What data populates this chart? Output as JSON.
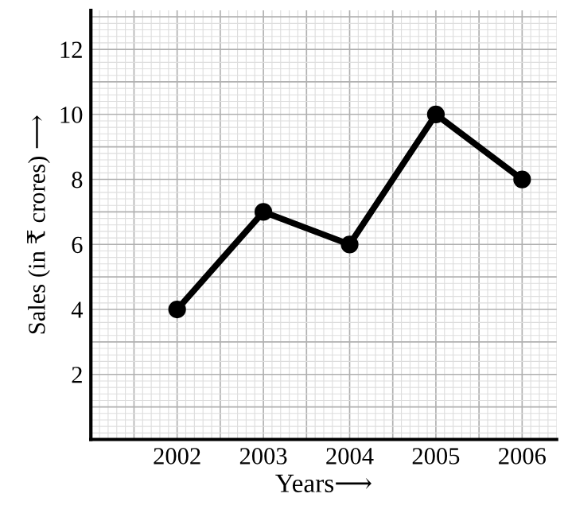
{
  "chart_data": {
    "type": "line",
    "xlabel": "Years⟶",
    "ylabel": "Sales (in ₹ crores) ⟶",
    "x": [
      2002,
      2003,
      2004,
      2005,
      2006
    ],
    "series": [
      {
        "color": "#000000",
        "values": [
          4,
          7,
          6,
          10,
          8
        ]
      }
    ],
    "xlim": [
      2001,
      2006.4
    ],
    "xticks": [
      2002,
      2003,
      2004,
      2005,
      2006
    ],
    "ylim": [
      0,
      13.2
    ],
    "yticks": [
      2,
      4,
      6,
      8,
      10,
      12
    ],
    "grid": true,
    "marker": "circle",
    "line_style": "solid"
  }
}
